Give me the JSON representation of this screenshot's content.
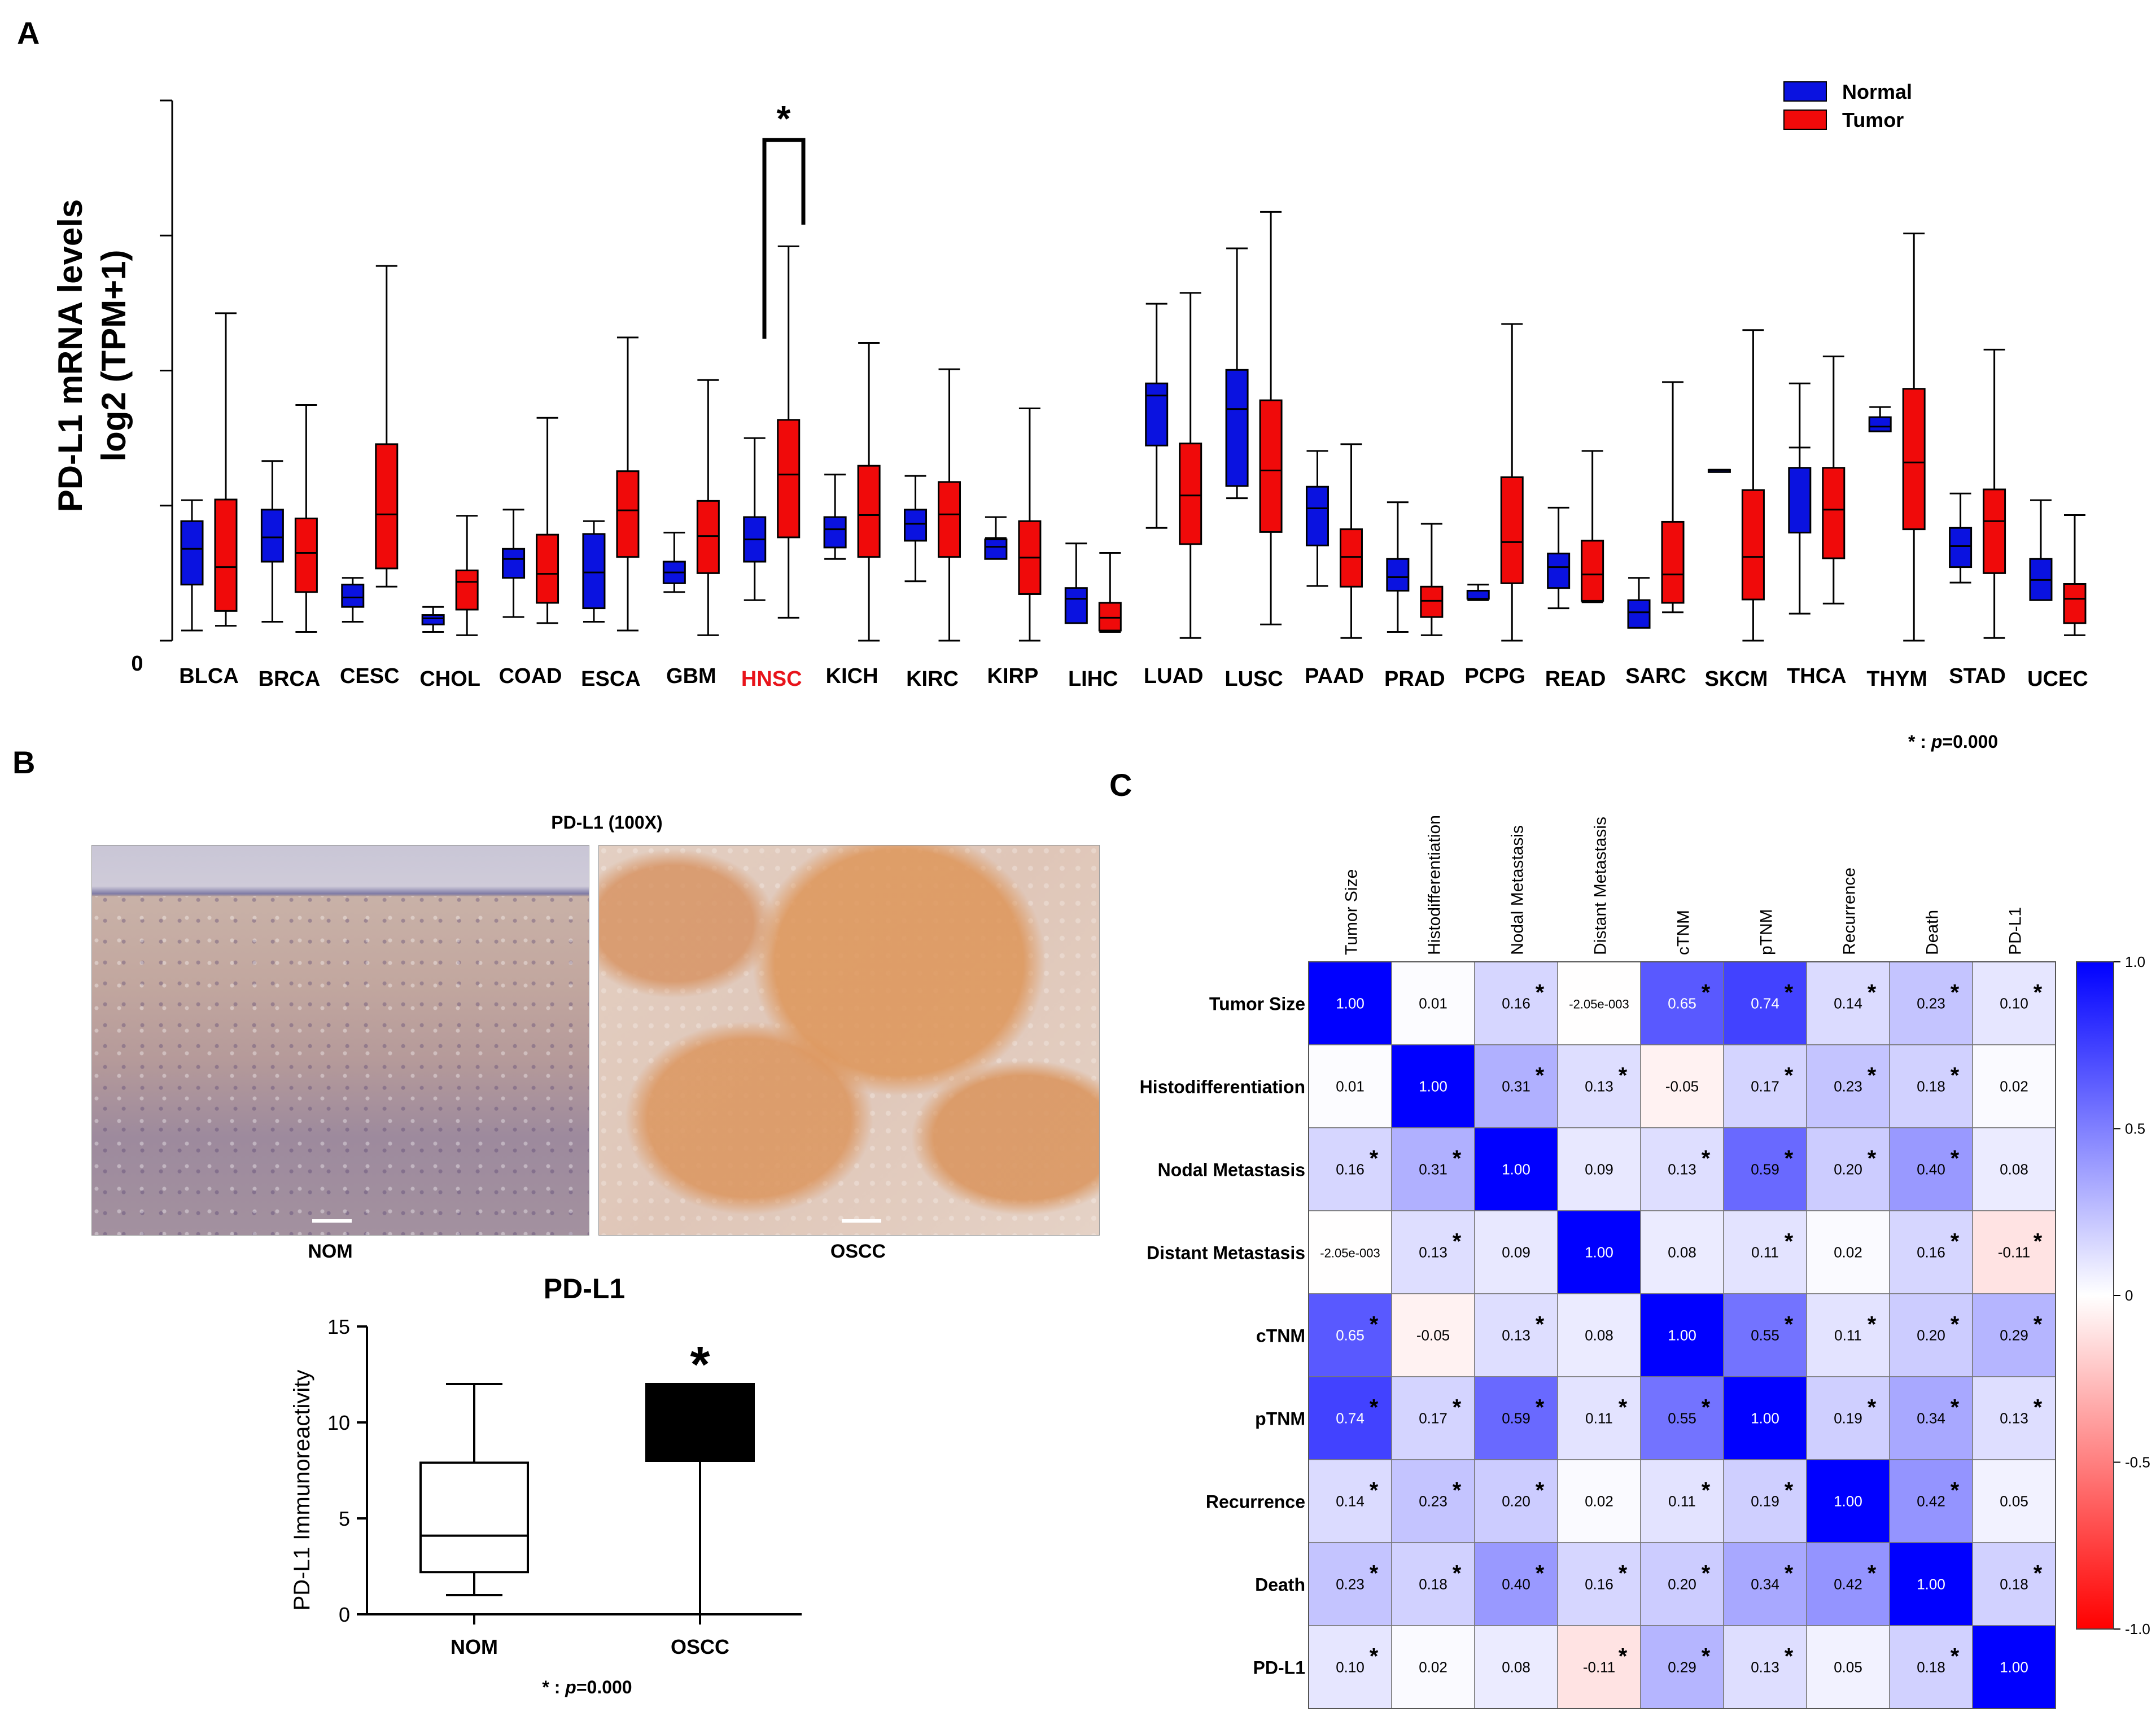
{
  "panels": {
    "a": "A",
    "b": "B",
    "c": "C"
  },
  "chart_data": [
    {
      "id": "panel-a",
      "type": "box",
      "ylabel": [
        "PD-L1 mRNA levels",
        "log2 (TPM+1)"
      ],
      "y_zero_label": "0",
      "ylim": [
        0,
        8
      ],
      "yticks": [
        0,
        2,
        4,
        6,
        8
      ],
      "highlight": "HNSC",
      "highlight_color": "#e8141b",
      "significance_mark": "*",
      "footnote": {
        "star": "* : ",
        "p": "p",
        "eq": "=0.000"
      },
      "legend": [
        {
          "name": "Normal",
          "color": "#0a12e0"
        },
        {
          "name": "Tumor",
          "color": "#f00a0a"
        }
      ],
      "categories": [
        "BLCA",
        "BRCA",
        "CESC",
        "CHOL",
        "COAD",
        "ESCA",
        "GBM",
        "HNSC",
        "KICH",
        "KIRC",
        "KIRP",
        "LIHC",
        "LUAD",
        "LUSC",
        "PAAD",
        "PRAD",
        "PCPG",
        "READ",
        "SARC",
        "SKCM",
        "THCA",
        "THYM",
        "STAD",
        "UCEC"
      ],
      "series": [
        {
          "name": "Normal",
          "boxes": [
            [
              0.15,
              0.83,
              1.36,
              1.77,
              2.08
            ],
            [
              0.28,
              1.17,
              1.53,
              1.94,
              2.66
            ],
            [
              0.28,
              0.5,
              0.64,
              0.83,
              0.93
            ],
            [
              0.13,
              0.24,
              0.33,
              0.38,
              0.5
            ],
            [
              0.35,
              0.93,
              1.21,
              1.36,
              1.94
            ],
            [
              0.28,
              0.48,
              1.01,
              1.58,
              1.77
            ],
            [
              0.72,
              0.85,
              1.01,
              1.17,
              1.6
            ],
            [
              0.6,
              1.17,
              1.5,
              1.83,
              3.0
            ],
            [
              1.21,
              1.38,
              1.65,
              1.83,
              2.46
            ],
            [
              0.88,
              1.48,
              1.73,
              1.94,
              2.44
            ],
            [
              1.52,
              1.21,
              1.39,
              1.5,
              1.83
            ],
            [
              0.28,
              0.26,
              0.62,
              0.78,
              1.44
            ],
            [
              1.67,
              2.89,
              3.63,
              3.81,
              4.99
            ],
            [
              2.11,
              2.29,
              3.43,
              4.01,
              5.81
            ],
            [
              0.81,
              1.41,
              1.96,
              2.28,
              2.81
            ],
            [
              0.13,
              0.74,
              0.94,
              1.21,
              2.05
            ],
            [
              0.6,
              0.62,
              0.62,
              0.74,
              0.83
            ],
            [
              0.48,
              0.78,
              1.09,
              1.29,
              1.97
            ],
            [
              0.26,
              0.19,
              0.42,
              0.6,
              0.93
            ],
            [
              2.53,
              2.53,
              2.53,
              2.53,
              2.53
            ],
            [
              0.4,
              1.6,
              2.86,
              2.56,
              3.81
            ],
            [
              3.1,
              3.1,
              3.17,
              3.31,
              3.46
            ],
            [
              0.86,
              1.09,
              1.4,
              1.67,
              2.18
            ],
            [
              0.67,
              0.6,
              0.9,
              1.21,
              2.08
            ]
          ]
        },
        {
          "name": "Tumor",
          "boxes": [
            [
              0.22,
              0.44,
              1.09,
              2.09,
              4.85
            ],
            [
              0.13,
              0.72,
              1.3,
              1.81,
              3.49
            ],
            [
              0.8,
              1.07,
              1.87,
              2.91,
              5.55
            ],
            [
              0.08,
              0.46,
              0.87,
              1.04,
              1.85
            ],
            [
              0.26,
              0.56,
              0.99,
              1.57,
              3.3
            ],
            [
              0.15,
              1.24,
              1.93,
              2.51,
              4.49
            ],
            [
              0.08,
              1.0,
              1.55,
              2.07,
              3.86
            ],
            [
              0.34,
              1.53,
              2.46,
              3.27,
              5.84
            ],
            [
              0.0,
              1.24,
              1.86,
              2.59,
              4.41
            ],
            [
              0.0,
              1.24,
              1.87,
              2.35,
              4.02
            ],
            [
              0.0,
              0.69,
              1.23,
              1.77,
              3.44
            ],
            [
              0.13,
              0.15,
              0.34,
              0.56,
              1.3
            ],
            [
              0.04,
              1.43,
              2.15,
              2.92,
              5.15
            ],
            [
              0.24,
              1.61,
              2.52,
              3.56,
              6.35
            ],
            [
              0.04,
              0.8,
              1.24,
              1.65,
              2.91
            ],
            [
              0.08,
              0.35,
              0.59,
              0.8,
              1.73
            ],
            [
              0.0,
              0.85,
              1.46,
              2.42,
              4.69
            ],
            [
              0.57,
              0.59,
              0.98,
              1.48,
              2.81
            ],
            [
              0.42,
              0.56,
              0.98,
              1.76,
              3.83
            ],
            [
              0.0,
              0.61,
              1.24,
              2.23,
              4.6
            ],
            [
              0.55,
              1.22,
              1.94,
              2.56,
              4.21
            ],
            [
              0.0,
              1.65,
              2.64,
              3.73,
              6.03
            ],
            [
              0.04,
              1.0,
              1.77,
              2.24,
              4.31
            ],
            [
              0.08,
              0.26,
              0.62,
              0.84,
              1.86
            ]
          ]
        }
      ]
    },
    {
      "id": "panel-b-chart",
      "type": "box",
      "title": "PD-L1",
      "ylabel": "PD-L1 Immunoreactivity",
      "ylim": [
        0,
        15
      ],
      "yticks": [
        0,
        5,
        10,
        15
      ],
      "categories": [
        "NOM",
        "OSCC"
      ],
      "boxes": [
        [
          1,
          2.2,
          4.1,
          7.9,
          12
        ],
        [
          0,
          8,
          12,
          12,
          12
        ]
      ],
      "fills": [
        "#ffffff",
        "#000000"
      ],
      "significance_mark": "*",
      "footnote": {
        "star": "* : ",
        "p": "p",
        "eq": "=0.000"
      }
    },
    {
      "id": "panel-c",
      "type": "heatmap",
      "labels": [
        "Tumor Size",
        "Histodifferentiation",
        "Nodal Metastasis",
        "Distant Metastasis",
        "cTNM",
        "pTNM",
        "Recurrence",
        "Death",
        "PD-L1"
      ],
      "values": [
        [
          1.0,
          0.01,
          0.16,
          -0.002,
          0.65,
          0.74,
          0.14,
          0.23,
          0.1
        ],
        [
          0.01,
          1.0,
          0.31,
          0.13,
          -0.05,
          0.17,
          0.23,
          0.18,
          0.02
        ],
        [
          0.16,
          0.31,
          1.0,
          0.09,
          0.13,
          0.59,
          0.2,
          0.4,
          0.08
        ],
        [
          -0.002,
          0.13,
          0.09,
          1.0,
          0.08,
          0.11,
          0.02,
          0.16,
          -0.11
        ],
        [
          0.65,
          -0.05,
          0.13,
          0.08,
          1.0,
          0.55,
          0.11,
          0.2,
          0.29
        ],
        [
          0.74,
          0.17,
          0.59,
          0.11,
          0.55,
          1.0,
          0.19,
          0.34,
          0.13
        ],
        [
          0.14,
          0.23,
          0.2,
          0.02,
          0.11,
          0.19,
          1.0,
          0.42,
          0.05
        ],
        [
          0.23,
          0.18,
          0.4,
          0.16,
          0.2,
          0.34,
          0.42,
          1.0,
          0.18
        ],
        [
          0.1,
          0.02,
          0.08,
          -0.11,
          0.29,
          0.13,
          0.05,
          0.18,
          1.0
        ]
      ],
      "cell_text": [
        [
          "1.00",
          "0.01",
          "0.16",
          "-2.05e-003",
          "0.65",
          "0.74",
          "0.14",
          "0.23",
          "0.10"
        ],
        [
          "0.01",
          "1.00",
          "0.31",
          "0.13",
          "-0.05",
          "0.17",
          "0.23",
          "0.18",
          "0.02"
        ],
        [
          "0.16",
          "0.31",
          "1.00",
          "0.09",
          "0.13",
          "0.59",
          "0.20",
          "0.40",
          "0.08"
        ],
        [
          "-2.05e-003",
          "0.13",
          "0.09",
          "1.00",
          "0.08",
          "0.11",
          "0.02",
          "0.16",
          "-0.11"
        ],
        [
          "0.65",
          "-0.05",
          "0.13",
          "0.08",
          "1.00",
          "0.55",
          "0.11",
          "0.20",
          "0.29"
        ],
        [
          "0.74",
          "0.17",
          "0.59",
          "0.11",
          "0.55",
          "1.00",
          "0.19",
          "0.34",
          "0.13"
        ],
        [
          "0.14",
          "0.23",
          "0.20",
          "0.02",
          "0.11",
          "0.19",
          "1.00",
          "0.42",
          "0.05"
        ],
        [
          "0.23",
          "0.18",
          "0.40",
          "0.16",
          "0.20",
          "0.34",
          "0.42",
          "1.00",
          "0.18"
        ],
        [
          "0.10",
          "0.02",
          "0.08",
          "-0.11",
          "0.29",
          "0.13",
          "0.05",
          "0.18",
          "1.00"
        ]
      ],
      "significant": [
        [
          0,
          0,
          1,
          0,
          1,
          1,
          1,
          1,
          1
        ],
        [
          0,
          0,
          1,
          1,
          0,
          1,
          1,
          1,
          0
        ],
        [
          1,
          1,
          0,
          0,
          1,
          1,
          1,
          1,
          0
        ],
        [
          0,
          1,
          0,
          0,
          0,
          1,
          0,
          1,
          1
        ],
        [
          1,
          0,
          1,
          0,
          0,
          1,
          1,
          1,
          1
        ],
        [
          1,
          1,
          1,
          1,
          1,
          0,
          1,
          1,
          1
        ],
        [
          1,
          1,
          1,
          0,
          1,
          1,
          0,
          1,
          0
        ],
        [
          1,
          1,
          1,
          1,
          1,
          1,
          1,
          0,
          1
        ],
        [
          1,
          0,
          0,
          1,
          1,
          1,
          0,
          1,
          0
        ]
      ],
      "mark": "*",
      "colorbar": {
        "min": -1.0,
        "max": 1.0,
        "ticks": [
          1.0,
          0.5,
          0,
          -0.5,
          -1.0
        ],
        "tick_labels": [
          "1.0",
          "0.5",
          "0",
          "-0.5",
          "-1.0"
        ],
        "low": "#ff0000",
        "mid": "#ffffff",
        "high": "#0000ff"
      }
    }
  ],
  "micrographs": {
    "title": "PD-L1 (100X)",
    "left_label": "NOM",
    "right_label": "OSCC"
  }
}
